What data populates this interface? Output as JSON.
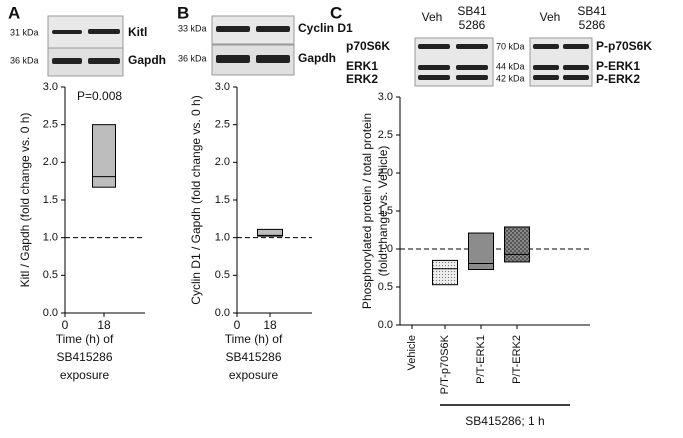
{
  "panels": {
    "a": "A",
    "b": "B",
    "c": "C"
  },
  "blots": {
    "a_kda1": "31 kDa",
    "a_lab1": "Kitl",
    "a_kda2": "36 kDa",
    "a_lab2": "Gapdh",
    "b_kda1": "33 kDa",
    "b_lab1": "Cyclin D1",
    "b_kda2": "36 kDa",
    "b_lab2": "Gapdh",
    "c_veh1": "Veh",
    "c_sb1": [
      "SB41",
      "5286"
    ],
    "c_veh2": "Veh",
    "c_sb2": [
      "SB41",
      "5286"
    ],
    "c_left": [
      "p70S6K",
      "ERK1",
      "ERK2"
    ],
    "c_kda": [
      "70 kDa",
      "44 kDa",
      "42 kDa"
    ],
    "c_right": [
      "P-p70S6K",
      "P-ERK1",
      "P-ERK2"
    ]
  },
  "chart_data": [
    {
      "type": "box",
      "ylabel": [
        "Kitl / Gapdh (fold change vs. 0 h)"
      ],
      "xlabel": [
        "Time (h) of",
        "SB415286",
        "exposure"
      ],
      "annotation": "P=0.008",
      "categories": [
        "0",
        "18"
      ],
      "low": [
        null,
        1.67
      ],
      "median": [
        null,
        1.81
      ],
      "high": [
        null,
        2.5
      ],
      "colors": [
        "#bdbdbd"
      ],
      "refline": 1,
      "ylim": [
        0,
        3
      ],
      "yticks": [
        {
          "value": 0,
          "label": "0.0"
        },
        0.5,
        {
          "value": 1,
          "label": "1.0"
        },
        1.5,
        {
          "value": 2,
          "label": "2.0"
        },
        2.5,
        {
          "value": 3,
          "label": "3.0"
        }
      ]
    },
    {
      "type": "box",
      "ylabel": [
        "Cyclin D1 / Gapdh (fold change vs. 0 h)"
      ],
      "xlabel": [
        "Time (h) of",
        "SB415286",
        "exposure"
      ],
      "categories": [
        "0",
        "18"
      ],
      "low": [
        null,
        1.02
      ],
      "median": [
        null,
        1.03
      ],
      "high": [
        null,
        1.11
      ],
      "colors": [
        "#bdbdbd"
      ],
      "refline": 1,
      "ylim": [
        0,
        3
      ],
      "yticks": [
        {
          "value": 0,
          "label": "0.0"
        },
        0.5,
        {
          "value": 1,
          "label": "1.0"
        },
        1.5,
        {
          "value": 2,
          "label": "2.0"
        },
        2.5,
        {
          "value": 3,
          "label": "3.0"
        }
      ]
    },
    {
      "type": "box",
      "ylabel": [
        "Phosphorylated protein / total protein",
        "(fold change vs. Vehicle)"
      ],
      "group_label": "SB415286; 1 h",
      "categories": [
        "Vehicle",
        "P/T-p70S6K",
        "P/T-ERK1",
        "P/T-ERK2"
      ],
      "low": [
        null,
        0.53,
        0.73,
        0.83
      ],
      "median": [
        null,
        0.74,
        0.81,
        0.93
      ],
      "high": [
        null,
        0.85,
        1.21,
        1.29
      ],
      "colors": [
        "#e4e4e4",
        "#8c8c8c",
        "#6f6f6f"
      ],
      "refline": 1,
      "ylim": [
        0,
        3
      ],
      "yticks": [
        {
          "value": 0,
          "label": "0.0"
        },
        0.5,
        {
          "value": 1,
          "label": "1.0"
        },
        1.5,
        {
          "value": 2,
          "label": "2.0"
        },
        2.5,
        {
          "value": 3,
          "label": "3.0"
        }
      ]
    }
  ]
}
